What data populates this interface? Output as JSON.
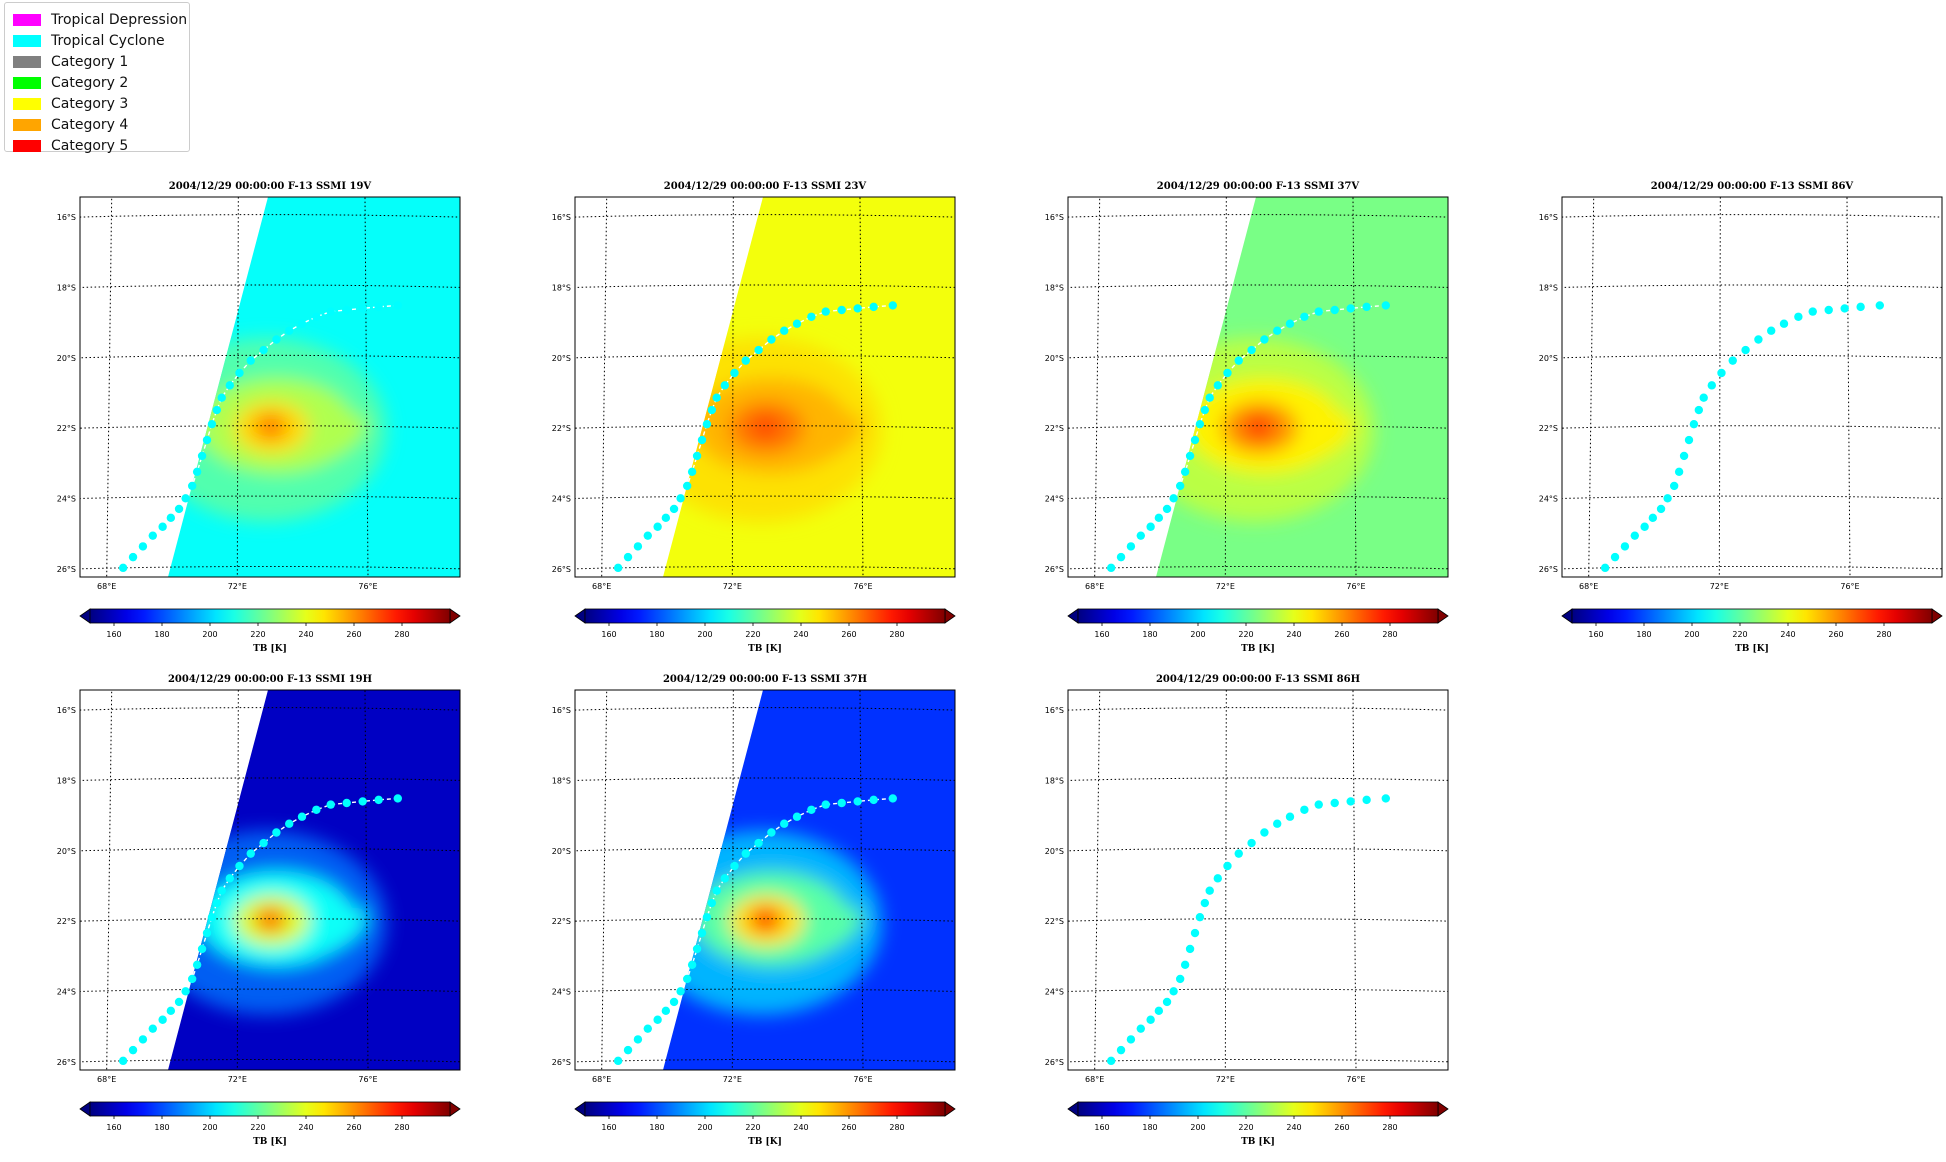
{
  "legend": {
    "entries": [
      {
        "label": "Tropical Depression",
        "color": "#ff00ff"
      },
      {
        "label": "Tropical Cyclone",
        "color": "#00ffff"
      },
      {
        "label": "Category 1",
        "color": "#808080"
      },
      {
        "label": "Category 2",
        "color": "#00ff00"
      },
      {
        "label": "Category 3",
        "color": "#ffff00"
      },
      {
        "label": "Category 4",
        "color": "#ffa500"
      },
      {
        "label": "Category 5",
        "color": "#ff0000"
      }
    ]
  },
  "colorbar": {
    "colormap": "jet",
    "ticks": [
      "160",
      "180",
      "200",
      "220",
      "240",
      "260",
      "280"
    ],
    "range": [
      150,
      300
    ],
    "label": "TB [K]",
    "extend": "both"
  },
  "map": {
    "lon_range": [
      67,
      79
    ],
    "lat_range": [
      -26.3,
      -15.5
    ],
    "lon_ticks": [
      68,
      72,
      76
    ],
    "lon_tick_labels": [
      "68°E",
      "72°E",
      "76°E"
    ],
    "lat_ticks": [
      -16,
      -18,
      -20,
      -22,
      -24,
      -26
    ],
    "lat_tick_labels": [
      "16°S",
      "18°S",
      "20°S",
      "22°S",
      "24°S",
      "26°S"
    ],
    "gridlines": "dotted"
  },
  "chart_data": {
    "type": "heatmap",
    "track": {
      "lon": [
        68.5,
        68.8,
        69.1,
        69.4,
        69.7,
        69.95,
        70.2,
        70.4,
        70.6,
        70.75,
        70.9,
        71.05,
        71.2,
        71.35,
        71.5,
        71.75,
        72.05,
        72.4,
        72.8,
        73.2,
        73.6,
        74.0,
        74.45,
        74.9,
        75.4,
        75.9,
        76.4,
        77.0
      ],
      "lat": [
        -26.0,
        -25.7,
        -25.4,
        -25.1,
        -24.85,
        -24.6,
        -24.35,
        -24.05,
        -23.7,
        -23.3,
        -22.85,
        -22.4,
        -21.95,
        -21.55,
        -21.2,
        -20.85,
        -20.5,
        -20.15,
        -19.85,
        -19.55,
        -19.3,
        -19.1,
        -18.9,
        -18.75,
        -18.7,
        -18.65,
        -18.6,
        -18.55
      ],
      "category": [
        "Tropical Cyclone"
      ]
    },
    "panels": [
      {
        "title": "2004/12/29 00:00:00  F-13 SSMI 19V",
        "channel": "19V",
        "data": true,
        "background_tb": 207,
        "peak_tb": 263
      },
      {
        "title": "2004/12/29 00:00:00  F-13 SSMI 23V",
        "channel": "23V",
        "data": true,
        "background_tb": 242,
        "peak_tb": 270
      },
      {
        "title": "2004/12/29 00:00:00  F-13 SSMI 37V",
        "channel": "37V",
        "data": true,
        "background_tb": 224,
        "peak_tb": 272
      },
      {
        "title": "2004/12/29 00:00:00  F-13 SSMI 86V",
        "channel": "86V",
        "data": false
      },
      {
        "title": "2004/12/29 00:00:00  F-13 SSMI 19H",
        "channel": "19H",
        "data": true,
        "background_tb": 160,
        "peak_tb": 265
      },
      {
        "title": "2004/12/29 00:00:00  F-13 SSMI 37H",
        "channel": "37H",
        "data": true,
        "background_tb": 176,
        "peak_tb": 272
      },
      {
        "title": "2004/12/29 00:00:00  F-13 SSMI 86H",
        "channel": "86H",
        "data": false
      }
    ]
  }
}
